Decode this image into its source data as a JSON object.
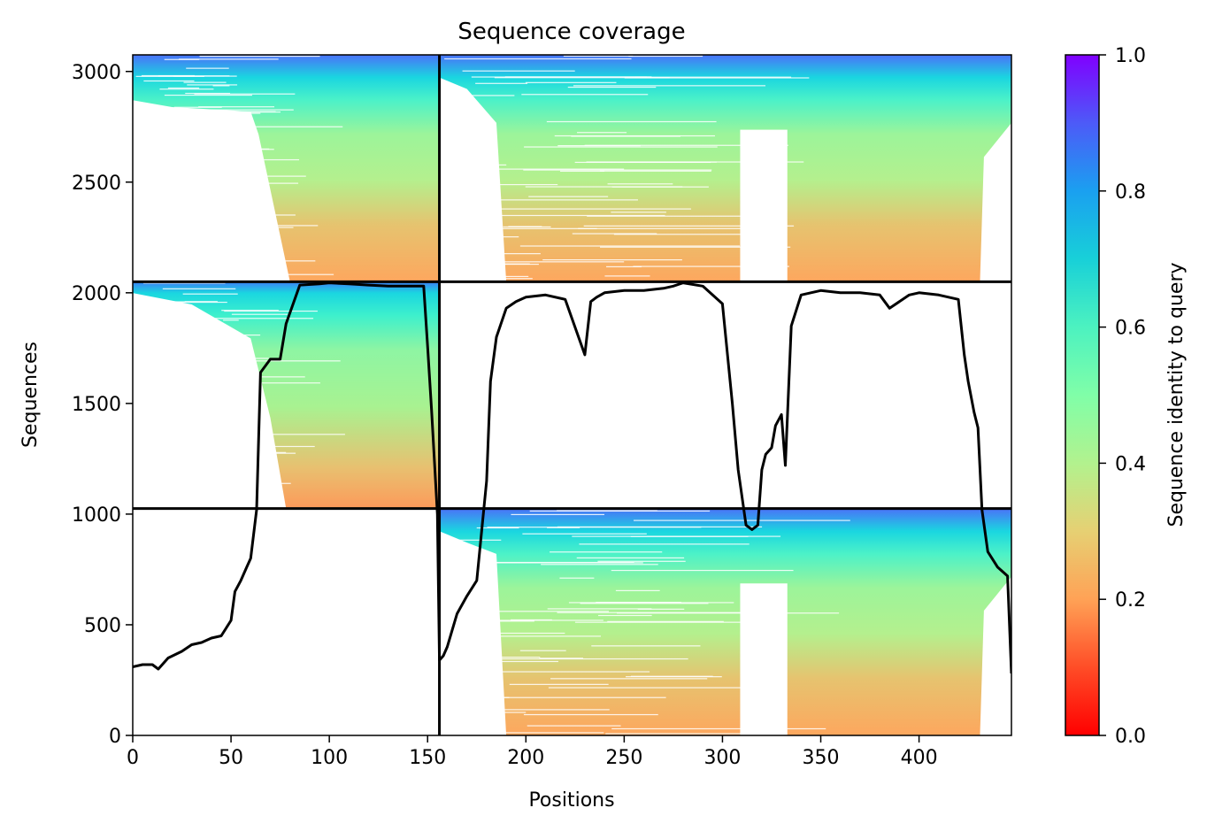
{
  "chart_data": {
    "type": "heatmap",
    "title": "Sequence coverage",
    "xlabel": "Positions",
    "ylabel": "Sequences",
    "xlim": [
      0,
      447
    ],
    "ylim": [
      0,
      3075
    ],
    "xticks": [
      0,
      50,
      100,
      150,
      200,
      250,
      300,
      350,
      400
    ],
    "yticks": [
      0,
      500,
      1000,
      1500,
      2000,
      2500,
      3000
    ],
    "colorbar": {
      "label": "Sequence identity to query",
      "range": [
        0.0,
        1.0
      ],
      "ticks": [
        "0.0",
        "0.2",
        "0.4",
        "0.6",
        "0.8",
        "1.0"
      ],
      "colormap": "rainbow_r"
    },
    "chain_breaks": {
      "x": [
        156
      ],
      "y": [
        1025,
        2050
      ]
    },
    "blocks": [
      {
        "name": "bottom-right",
        "x_range": [
          156,
          447
        ],
        "y_range": [
          0,
          1025
        ],
        "coverage_gaps": [
          [
            309,
            333
          ]
        ]
      },
      {
        "name": "middle-left",
        "x_range": [
          0,
          156
        ],
        "y_range": [
          1025,
          2050
        ]
      },
      {
        "name": "top-left",
        "x_range": [
          0,
          156
        ],
        "y_range": [
          2050,
          3075
        ]
      },
      {
        "name": "top-right",
        "x_range": [
          156,
          447
        ],
        "y_range": [
          2050,
          3075
        ],
        "coverage_gaps": [
          [
            309,
            333
          ]
        ]
      }
    ],
    "coverage_line": {
      "x": [
        0,
        5,
        10,
        13,
        18,
        25,
        30,
        35,
        40,
        45,
        50,
        52,
        55,
        58,
        60,
        63,
        65,
        70,
        75,
        78,
        85,
        95,
        100,
        110,
        120,
        130,
        140,
        148,
        150,
        152,
        155,
        156,
        158,
        160,
        165,
        170,
        175,
        180,
        182,
        185,
        190,
        195,
        200,
        210,
        220,
        230,
        233,
        236,
        240,
        250,
        260,
        270,
        275,
        280,
        290,
        300,
        305,
        308,
        312,
        315,
        318,
        320,
        322,
        325,
        327,
        330,
        332,
        335,
        340,
        350,
        360,
        370,
        380,
        385,
        390,
        395,
        400,
        410,
        420,
        423,
        425,
        428,
        430,
        432,
        435,
        440,
        445,
        447
      ],
      "y": [
        310,
        320,
        320,
        300,
        350,
        380,
        410,
        420,
        440,
        450,
        520,
        650,
        700,
        760,
        800,
        1020,
        1640,
        1700,
        1700,
        1860,
        2035,
        2040,
        2045,
        2040,
        2035,
        2030,
        2030,
        2030,
        1760,
        1470,
        1000,
        340,
        360,
        400,
        550,
        630,
        700,
        1150,
        1600,
        1800,
        1930,
        1960,
        1980,
        1990,
        1970,
        1720,
        1960,
        1980,
        2000,
        2010,
        2010,
        2020,
        2030,
        2045,
        2030,
        1950,
        1500,
        1200,
        950,
        930,
        950,
        1200,
        1270,
        1300,
        1400,
        1450,
        1220,
        1850,
        1990,
        2010,
        2000,
        2000,
        1990,
        1930,
        1960,
        1990,
        2000,
        1990,
        1970,
        1720,
        1600,
        1460,
        1390,
        1020,
        830,
        760,
        720,
        280
      ]
    }
  }
}
